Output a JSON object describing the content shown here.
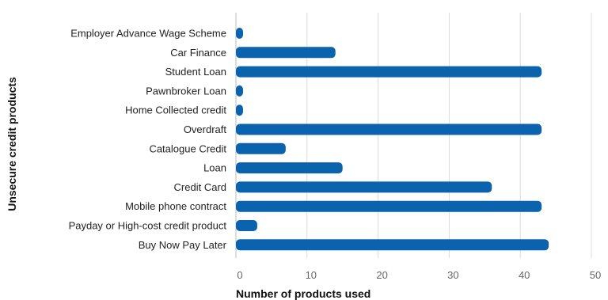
{
  "chart_data": {
    "type": "bar",
    "orientation": "horizontal",
    "categories": [
      "Employer Advance Wage Scheme",
      "Car Finance",
      "Student Loan",
      "Pawnbroker Loan",
      "Home Collected credit",
      "Overdraft",
      "Catalogue Credit",
      "Loan",
      "Credit Card",
      "Mobile phone contract",
      "Payday or High-cost credit product",
      "Buy Now Pay Later"
    ],
    "values": [
      1,
      14,
      43,
      1,
      1,
      43,
      7,
      15,
      36,
      43,
      3,
      44
    ],
    "xlabel": "Number of products used",
    "ylabel": "Unsecure credit products",
    "xlim": [
      0,
      50
    ],
    "xticks": [
      "0",
      "10",
      "20",
      "30",
      "40",
      "50"
    ],
    "grid": "vertical",
    "color": "#0b63ad"
  }
}
